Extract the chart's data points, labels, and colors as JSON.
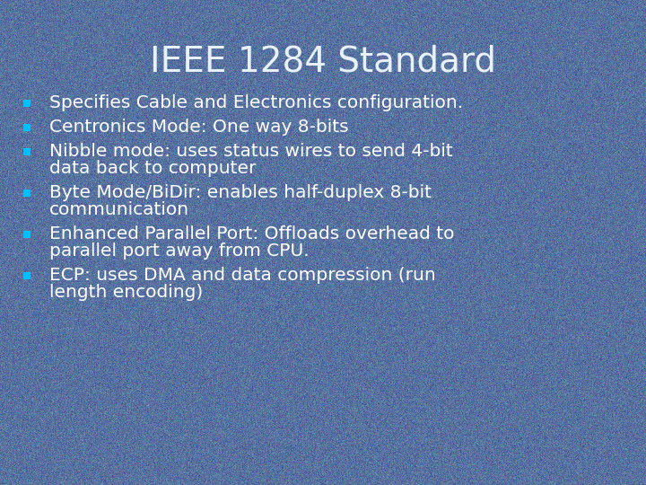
{
  "title": "IEEE 1284 Standard",
  "title_color": "#e8f0f8",
  "title_fontsize": 28,
  "background_color_top": "#4a6880",
  "background_color": "#5872a0",
  "bullet_color": "#00BFFF",
  "text_color": "#FFFFFF",
  "text_fontsize": 14.5,
  "bullet_items": [
    [
      "Specifies Cable and Electronics configuration."
    ],
    [
      "Centronics Mode: One way 8-bits"
    ],
    [
      "Nibble mode: uses status wires to send 4-bit",
      "data back to computer"
    ],
    [
      "Byte Mode/BiDir: enables half-duplex 8-bit",
      "communication"
    ],
    [
      "Enhanced Parallel Port: Offloads overhead to",
      "parallel port away from CPU."
    ],
    [
      "ECP: uses DMA and data compression (run",
      "length encoding)"
    ]
  ]
}
